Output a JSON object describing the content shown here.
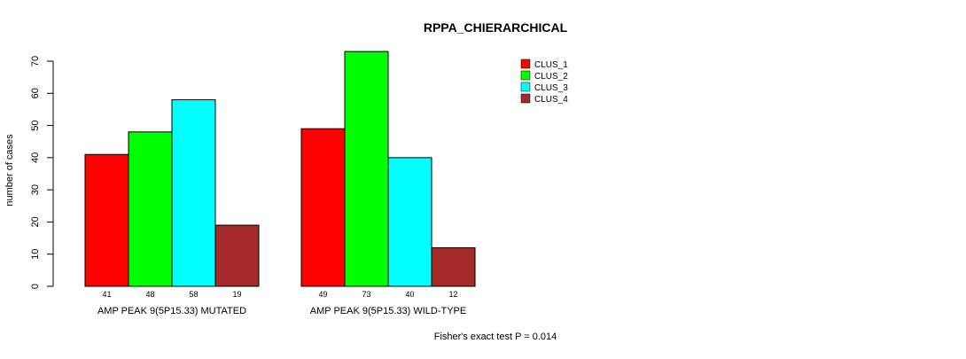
{
  "chart_data": {
    "type": "bar",
    "title": "RPPA_CHIERARCHICAL",
    "ylabel": "number of cases",
    "xlabel": "",
    "ylim": [
      0,
      70
    ],
    "yticks": [
      0,
      10,
      20,
      30,
      40,
      50,
      60,
      70
    ],
    "grid": false,
    "legend_position": "top-right",
    "groups": [
      "AMP PEAK  9(5P15.33) MUTATED",
      "AMP PEAK  9(5P15.33) WILD-TYPE"
    ],
    "series": [
      {
        "name": "CLUS_1",
        "color": "#ff0000",
        "values": [
          41,
          49
        ]
      },
      {
        "name": "CLUS_2",
        "color": "#00ff00",
        "values": [
          48,
          73
        ]
      },
      {
        "name": "CLUS_3",
        "color": "#00ffff",
        "values": [
          58,
          40
        ]
      },
      {
        "name": "CLUS_4",
        "color": "#a52a2a",
        "values": [
          19,
          12
        ]
      }
    ],
    "annotation": "Fisher's exact test P = 0.014"
  }
}
